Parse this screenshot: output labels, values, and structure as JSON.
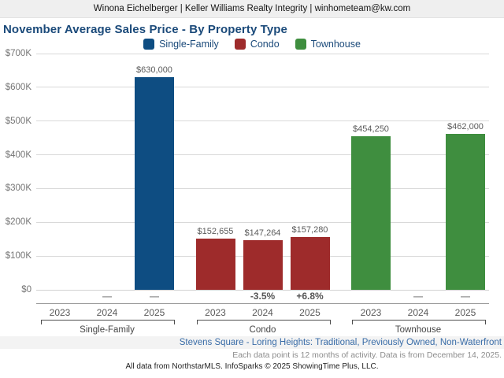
{
  "header": {
    "contact_line": "Winona Eichelberger | Keller Williams Realty Integrity | winhometeam@kw.com"
  },
  "title": "November Average Sales Price - By Property Type",
  "legend": [
    {
      "label": "Single-Family",
      "color": "#0e4d82"
    },
    {
      "label": "Condo",
      "color": "#9e2b2b"
    },
    {
      "label": "Townhouse",
      "color": "#3f8e3f"
    }
  ],
  "chart_data": {
    "type": "bar",
    "title": "November Average Sales Price - By Property Type",
    "xlabel": "",
    "ylabel": "",
    "ylim": [
      0,
      700000
    ],
    "ytick_step": 100000,
    "ytick_labels": [
      "$0",
      "$100K",
      "$200K",
      "$300K",
      "$400K",
      "$500K",
      "$600K",
      "$700K"
    ],
    "grid": true,
    "legend_position": "top",
    "categories": [
      "2023",
      "2024",
      "2025"
    ],
    "series": [
      {
        "name": "Single-Family",
        "color": "#0e4d82",
        "values": [
          null,
          null,
          630000
        ],
        "value_labels": [
          "",
          "",
          "$630,000"
        ],
        "pct_change": [
          "",
          "—",
          "—"
        ]
      },
      {
        "name": "Condo",
        "color": "#9e2b2b",
        "values": [
          152655,
          147264,
          157280
        ],
        "value_labels": [
          "$152,655",
          "$147,264",
          "$157,280"
        ],
        "pct_change": [
          "",
          "-3.5%",
          "+6.8%"
        ]
      },
      {
        "name": "Townhouse",
        "color": "#3f8e3f",
        "values": [
          454250,
          null,
          462000
        ],
        "value_labels": [
          "$454,250",
          "",
          "$462,000"
        ],
        "pct_change": [
          "",
          "—",
          "—"
        ]
      }
    ]
  },
  "footer": {
    "filter_line": "Stevens Square - Loring Heights: Traditional, Previously Owned, Non-Waterfront",
    "data_note": "Each data point is 12 months of activity. Data is from December 14, 2025.",
    "attribution": "All data from NorthstarMLS. InfoSparks © 2025 ShowingTime Plus, LLC."
  },
  "colors": {
    "title_text": "#1b4a7a",
    "single_family": "#0e4d82",
    "condo": "#9e2b2b",
    "townhouse": "#3f8e3f",
    "gridline": "#d9d9d9",
    "footer_link": "#3a6da8",
    "header_band": "#efefef",
    "footer_band": "#f3f3f3"
  }
}
